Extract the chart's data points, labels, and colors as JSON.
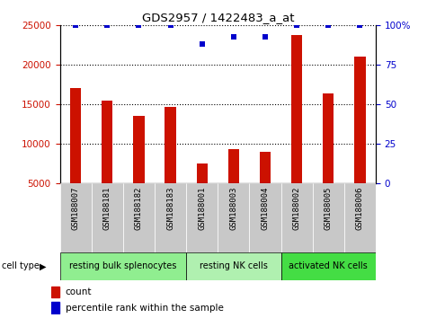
{
  "title": "GDS2957 / 1422483_a_at",
  "samples": [
    "GSM188007",
    "GSM188181",
    "GSM188182",
    "GSM188183",
    "GSM188001",
    "GSM188003",
    "GSM188004",
    "GSM188002",
    "GSM188005",
    "GSM188006"
  ],
  "counts": [
    17000,
    15500,
    13500,
    14700,
    7500,
    9300,
    9000,
    23800,
    16400,
    21000
  ],
  "percentiles": [
    100,
    100,
    100,
    100,
    88,
    93,
    93,
    100,
    100,
    100
  ],
  "cell_groups": [
    {
      "label": "resting bulk splenocytes",
      "start": 0,
      "end": 4,
      "color": "#90ee90"
    },
    {
      "label": "resting NK cells",
      "start": 4,
      "end": 7,
      "color": "#b0f0b0"
    },
    {
      "label": "activated NK cells",
      "start": 7,
      "end": 10,
      "color": "#44dd44"
    }
  ],
  "bar_color": "#cc1100",
  "scatter_color": "#0000cc",
  "ylim_left": [
    5000,
    25000
  ],
  "ylim_right": [
    0,
    100
  ],
  "yticks_left": [
    5000,
    10000,
    15000,
    20000,
    25000
  ],
  "yticks_right": [
    0,
    25,
    50,
    75,
    100
  ],
  "grid_lines": [
    10000,
    15000,
    20000,
    25000
  ],
  "tick_bg_color": "#c8c8c8",
  "bar_width": 0.35
}
